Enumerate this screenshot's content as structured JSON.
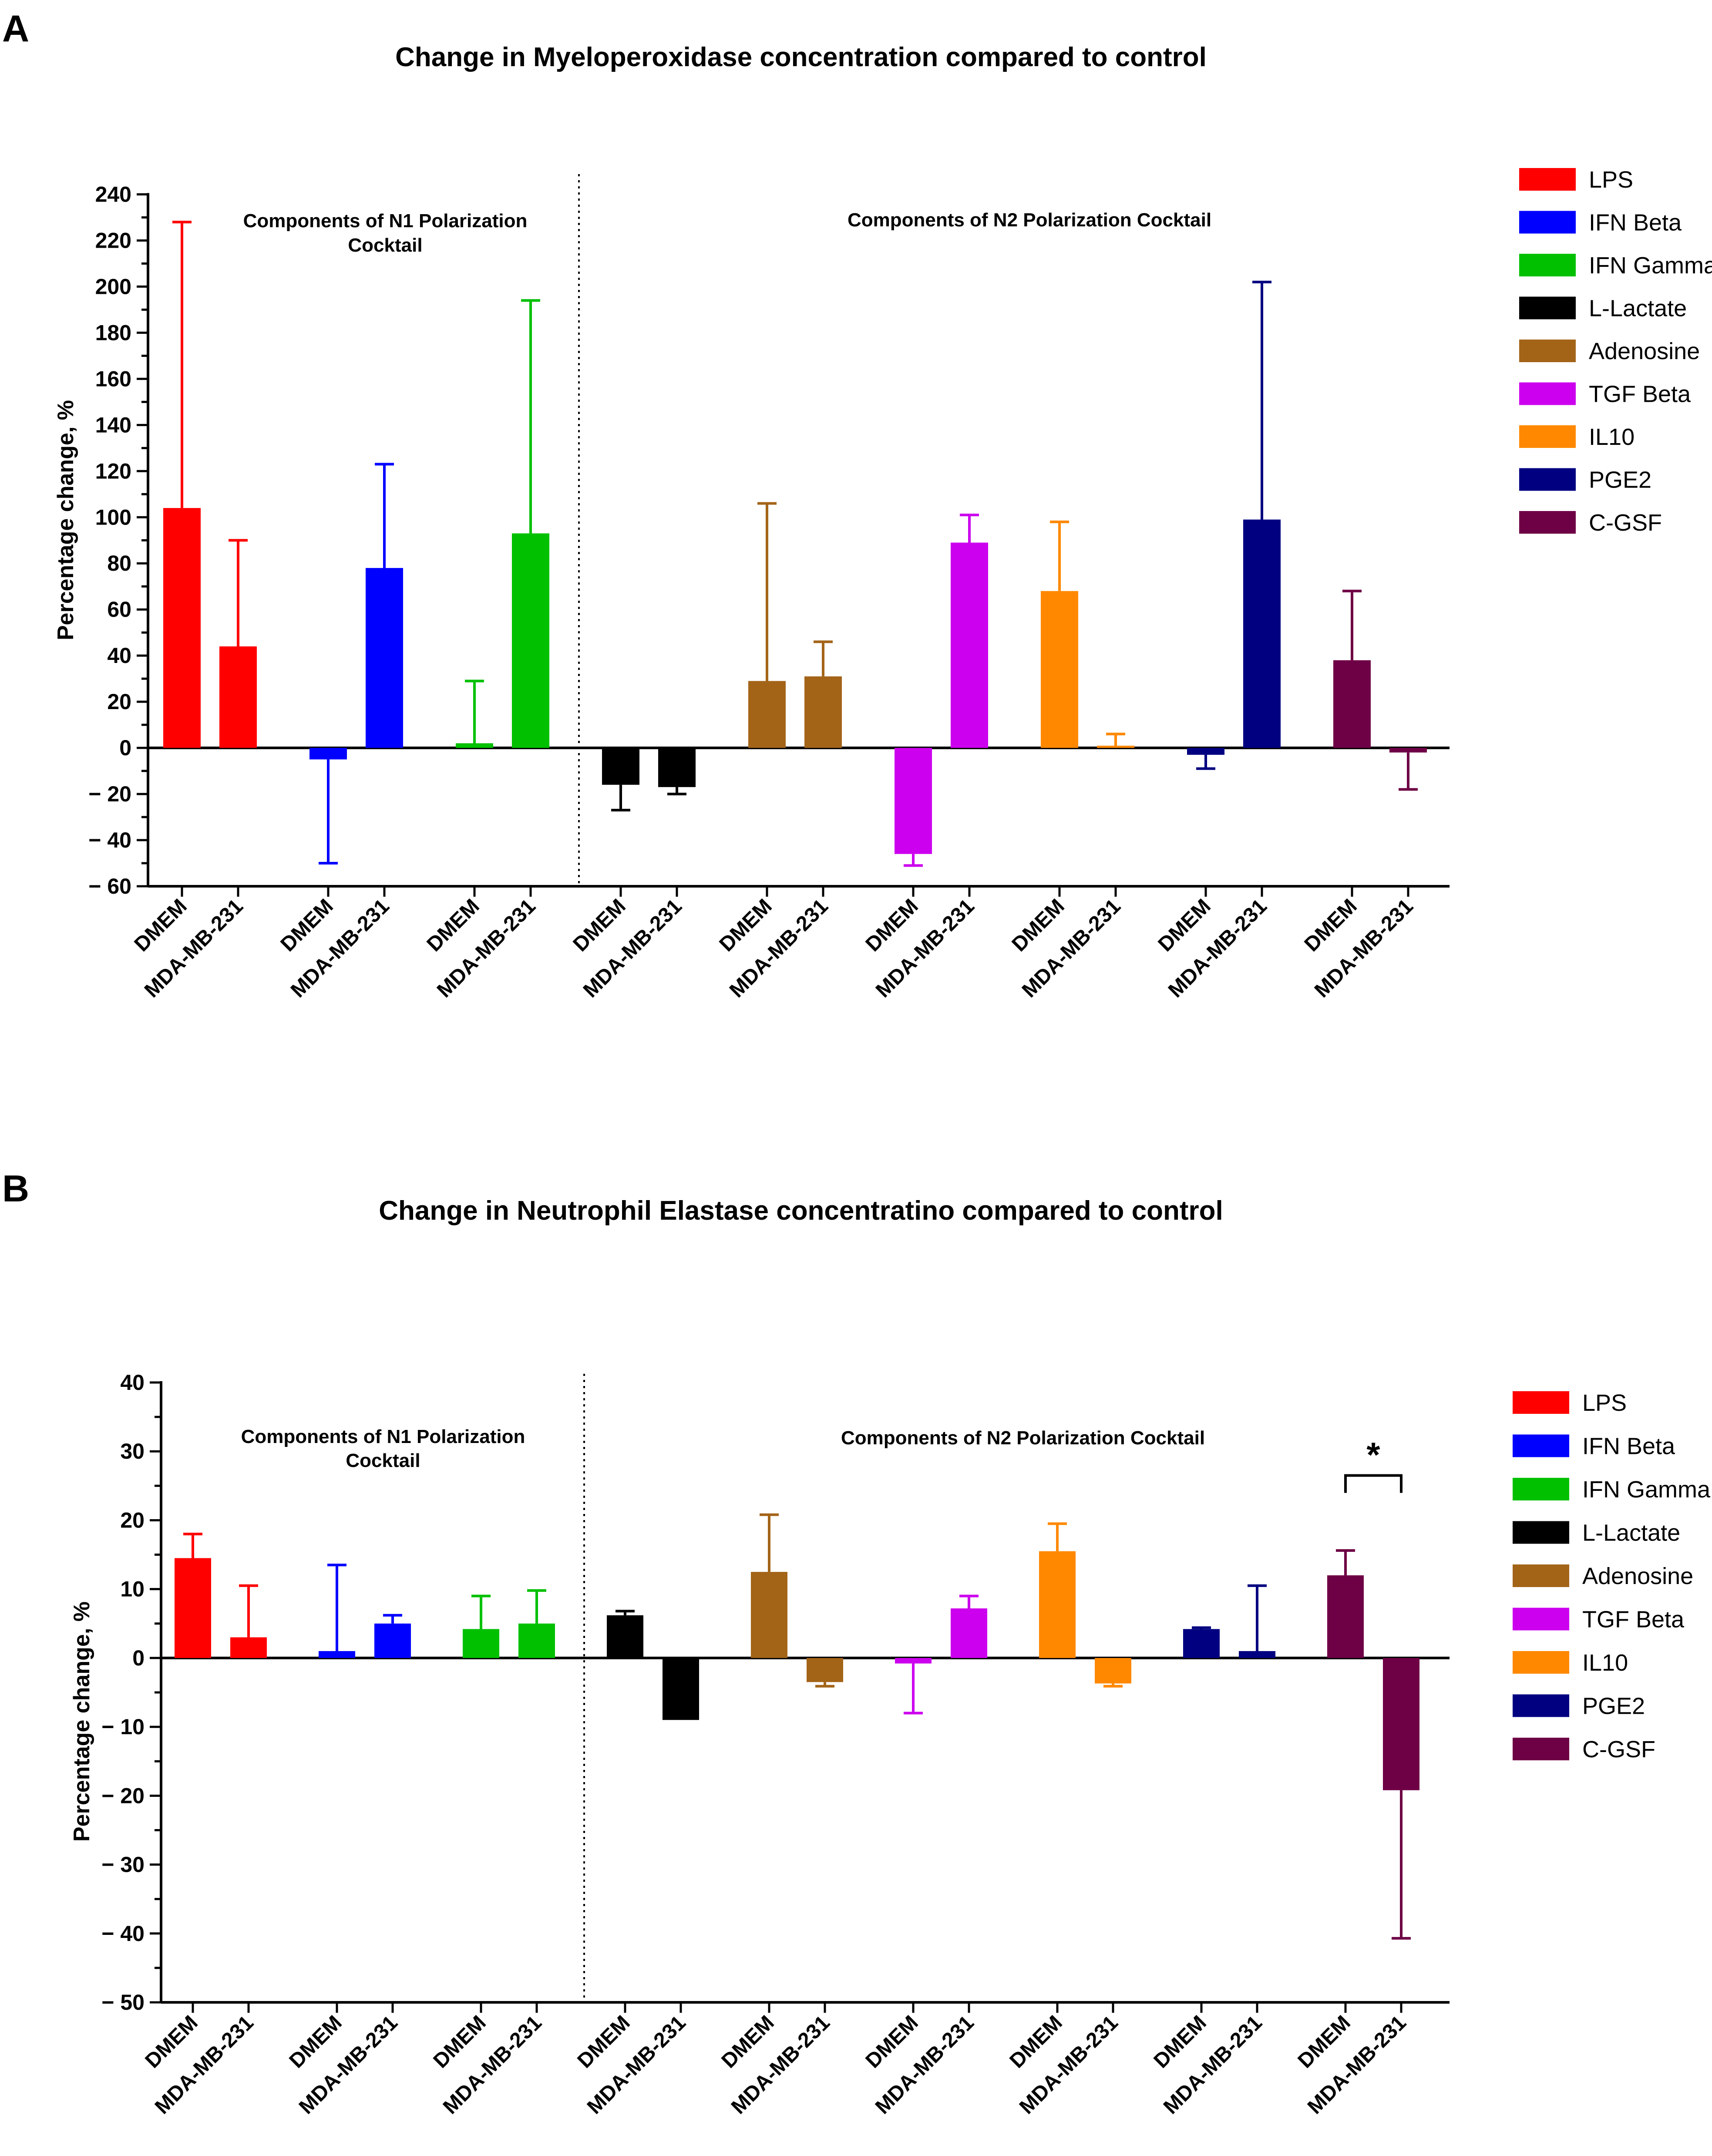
{
  "colors": {
    "LPS": "#ff0000",
    "IFN Beta": "#0000ff",
    "IFN Gamma": "#00c000",
    "L-Lactate": "#000000",
    "Adenosine": "#a36418",
    "TGF Beta": "#cc00ee",
    "IL10": "#ff8800",
    "PGE2": "#000080",
    "C-GSF": "#6e0045"
  },
  "chart_data": [
    {
      "type": "bar",
      "panel_label": "A",
      "title": "Change in Myeloperoxidase concentration compared to control",
      "xlabel": "",
      "ylabel": "Percentage change, %",
      "ylim": [
        -60,
        245
      ],
      "yticks": [
        -60,
        -40,
        -20,
        0,
        20,
        40,
        60,
        80,
        100,
        120,
        140,
        160,
        180,
        200,
        220,
        240
      ],
      "ytick_labels": [
        "− 60",
        "− 40",
        "− 20",
        "0",
        "20",
        "40",
        "60",
        "80",
        "100",
        "120",
        "140",
        "160",
        "180",
        "200",
        "220",
        "240"
      ],
      "grid": false,
      "legend_position": "right",
      "annotations": [
        "Components of N1 Polarization Cocktail",
        "Components of N2 Polarization Cocktail"
      ],
      "categories": [
        "DMEM",
        "MDA-MB-231"
      ],
      "series": [
        {
          "name": "LPS",
          "values": [
            104,
            44
          ],
          "errors": [
            124,
            46
          ]
        },
        {
          "name": "IFN Beta",
          "values": [
            -5,
            78
          ],
          "errors": [
            45,
            45
          ]
        },
        {
          "name": "IFN Gamma",
          "values": [
            2,
            93
          ],
          "errors": [
            27,
            101
          ]
        },
        {
          "name": "L-Lactate",
          "values": [
            -16,
            -17
          ],
          "errors": [
            11,
            3
          ]
        },
        {
          "name": "Adenosine",
          "values": [
            29,
            31
          ],
          "errors": [
            77,
            15
          ]
        },
        {
          "name": "TGF Beta",
          "values": [
            -46,
            89
          ],
          "errors": [
            5,
            12
          ]
        },
        {
          "name": "IL10",
          "values": [
            68,
            0
          ],
          "errors": [
            30,
            6
          ]
        },
        {
          "name": "PGE2",
          "values": [
            -3,
            99
          ],
          "errors": [
            6,
            103
          ]
        },
        {
          "name": "C-GSF",
          "values": [
            38,
            -2
          ],
          "errors": [
            30,
            16
          ]
        }
      ],
      "significance": []
    },
    {
      "type": "bar",
      "panel_label": "B",
      "title": "Change in Neutrophil Elastase concentratino compared to control",
      "xlabel": "",
      "ylabel": "Percentage change, %",
      "ylim": [
        -50,
        40
      ],
      "yticks": [
        -50,
        -40,
        -30,
        -20,
        -10,
        0,
        10,
        20,
        30,
        40
      ],
      "ytick_labels": [
        "− 50",
        "− 40",
        "− 30",
        "− 20",
        "− 10",
        "0",
        "10",
        "20",
        "30",
        "40"
      ],
      "grid": false,
      "legend_position": "right",
      "annotations": [
        "Components of N1 Polarization Cocktail",
        "Components of N2 Polarization Cocktail"
      ],
      "categories": [
        "DMEM",
        "MDA-MB-231"
      ],
      "series": [
        {
          "name": "LPS",
          "values": [
            14.5,
            3
          ],
          "errors": [
            3.5,
            7.5
          ]
        },
        {
          "name": "IFN Beta",
          "values": [
            1,
            5
          ],
          "errors": [
            12.5,
            1.2
          ]
        },
        {
          "name": "IFN Gamma",
          "values": [
            4.2,
            5
          ],
          "errors": [
            4.8,
            4.8
          ]
        },
        {
          "name": "L-Lactate",
          "values": [
            6.2,
            -9
          ],
          "errors": [
            0.6,
            0
          ]
        },
        {
          "name": "Adenosine",
          "values": [
            12.5,
            -3.5
          ],
          "errors": [
            8.3,
            0.6
          ]
        },
        {
          "name": "TGF Beta",
          "values": [
            -0.8,
            7.2
          ],
          "errors": [
            7.2,
            1.8
          ]
        },
        {
          "name": "IL10",
          "values": [
            15.5,
            -3.7
          ],
          "errors": [
            4,
            0.4
          ]
        },
        {
          "name": "PGE2",
          "values": [
            4.2,
            1
          ],
          "errors": [
            0.2,
            9.5
          ]
        },
        {
          "name": "C-GSF",
          "values": [
            12,
            -19.2
          ],
          "errors": [
            3.6,
            21.5
          ]
        }
      ],
      "significance": [
        {
          "series": "C-GSF",
          "between": [
            "DMEM",
            "MDA-MB-231"
          ],
          "label": "*"
        }
      ]
    }
  ]
}
